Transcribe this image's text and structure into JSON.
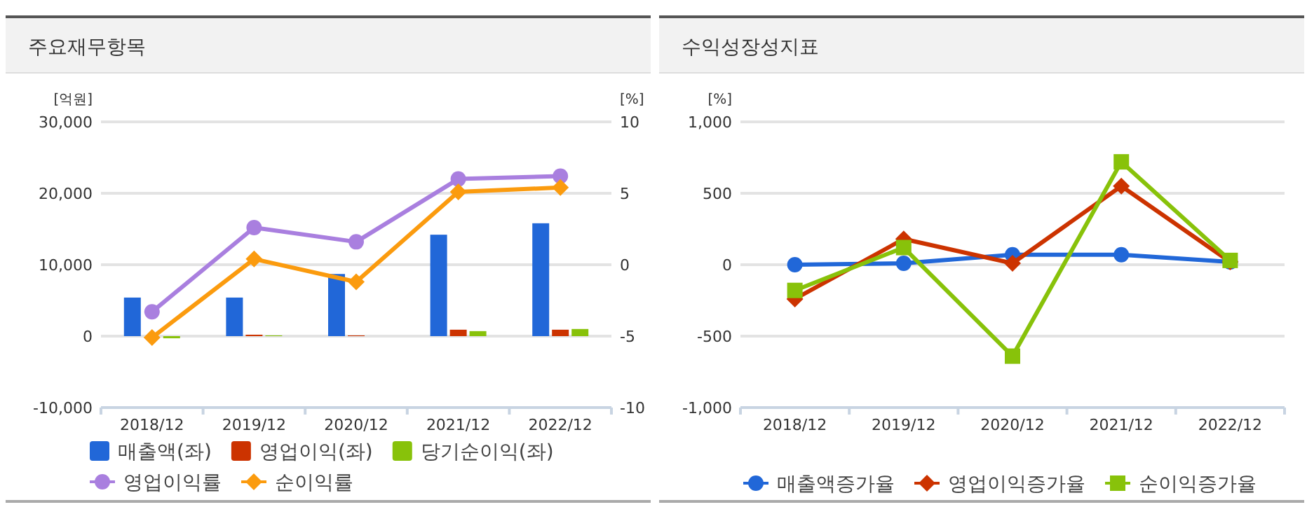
{
  "chart_data": [
    {
      "type": "bar",
      "title": "주요재무항목",
      "ylabel": "[억원]",
      "y2label": "[%]",
      "categories": [
        "2018/12",
        "2019/12",
        "2020/12",
        "2021/12",
        "2022/12"
      ],
      "series": [
        {
          "name": "매출액(좌)",
          "color": "#2167d8",
          "values": [
            5400,
            5400,
            8700,
            14200,
            15800
          ]
        },
        {
          "name": "영업이익(좌)",
          "color": "#cc3300",
          "values": [
            null,
            200,
            100,
            900,
            900
          ]
        },
        {
          "name": "당기순이익(좌)",
          "color": "#88c20a",
          "values": [
            -300,
            100,
            null,
            700,
            1000
          ]
        },
        {
          "name": "영업이익률",
          "type": "line",
          "axis": "y2",
          "marker": "circle",
          "color": "#a97fdf",
          "values": [
            -3.3,
            2.6,
            1.6,
            6.0,
            6.2
          ]
        },
        {
          "name": "순이익률",
          "type": "line",
          "axis": "y2",
          "marker": "diamond",
          "color": "#fb9b0e",
          "values": [
            -5.1,
            0.4,
            -1.2,
            5.1,
            5.4
          ]
        }
      ],
      "ylim": [
        -10000,
        30000
      ],
      "yticks": [
        {
          "value": -10000,
          "label": "-10,000"
        },
        0,
        {
          "value": 10000,
          "label": "10,000"
        },
        {
          "value": 20000,
          "label": "20,000"
        },
        {
          "value": 30000,
          "label": "30,000"
        }
      ],
      "y2lim": [
        -10,
        10
      ],
      "y2ticks": [
        -10,
        -5,
        0,
        5,
        10
      ],
      "grid": "y",
      "legend": "bottom"
    },
    {
      "type": "line",
      "title": "수익성장성지표",
      "ylabel": "[%]",
      "categories": [
        "2018/12",
        "2019/12",
        "2020/12",
        "2021/12",
        "2022/12"
      ],
      "series": [
        {
          "name": "매출액증가율",
          "marker": "circle",
          "color": "#2167d8",
          "values": [
            0,
            10,
            70,
            70,
            20
          ]
        },
        {
          "name": "영업이익증가율",
          "marker": "diamond",
          "color": "#cc3300",
          "values": [
            -240,
            180,
            10,
            550,
            20
          ]
        },
        {
          "name": "순이익증가율",
          "marker": "square",
          "color": "#88c20a",
          "values": [
            -180,
            120,
            -640,
            720,
            30
          ]
        }
      ],
      "ylim": [
        -1000,
        1000
      ],
      "yticks": [
        {
          "value": -1000,
          "label": "-1,000"
        },
        -500,
        0,
        500,
        {
          "value": 1000,
          "label": "1,000"
        }
      ],
      "grid": "y",
      "legend": "bottom"
    }
  ]
}
